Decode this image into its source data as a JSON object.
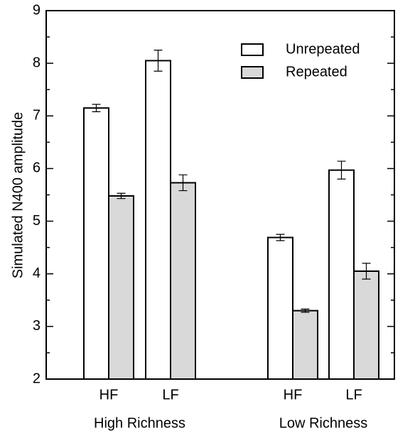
{
  "chart_data": {
    "type": "bar",
    "y_label": "Simulated N400 amplitude",
    "categories": [
      "HF",
      "LF",
      "HF",
      "LF"
    ],
    "groups": [
      {
        "label": "High Richness",
        "members": [
          0,
          1
        ]
      },
      {
        "label": "Low Richness",
        "members": [
          2,
          3
        ]
      }
    ],
    "series": [
      {
        "name": "Unrepeated",
        "color": "#ffffff",
        "values": [
          7.15,
          8.05,
          4.69,
          5.97
        ],
        "errors": [
          0.07,
          0.2,
          0.06,
          0.17
        ]
      },
      {
        "name": "Repeated",
        "color": "#d9d9d9",
        "values": [
          5.48,
          5.73,
          3.3,
          4.05
        ],
        "errors": [
          0.05,
          0.15,
          0.03,
          0.15
        ]
      }
    ],
    "ylim": [
      2,
      9
    ],
    "yticks": [
      2,
      3,
      4,
      5,
      6,
      7,
      8,
      9
    ],
    "minor_yticks": [
      2.5,
      3.5,
      4.5,
      5.5,
      6.5,
      7.5,
      8.5
    ],
    "legend": "upper right"
  }
}
